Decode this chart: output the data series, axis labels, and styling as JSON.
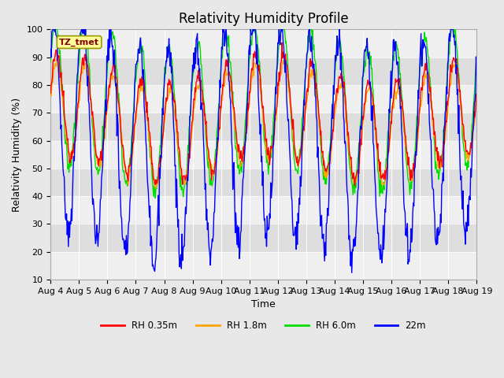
{
  "title": "Relativity Humidity Profile",
  "xlabel": "Time",
  "ylabel": "Relativity Humidity (%)",
  "ylim": [
    10,
    100
  ],
  "n_days": 15,
  "xtick_labels": [
    "Aug 4",
    "Aug 5",
    "Aug 6",
    "Aug 7",
    "Aug 8",
    "Aug 9",
    "Aug 10",
    "Aug 11",
    "Aug 12",
    "Aug 13",
    "Aug 14",
    "Aug 15",
    "Aug 16",
    "Aug 17",
    "Aug 18",
    "Aug 19"
  ],
  "annotation_text": "TZ_tmet",
  "legend_labels": [
    "RH 0.35m",
    "RH 1.8m",
    "RH 6.0m",
    "22m"
  ],
  "colors": {
    "red": "#ff0000",
    "orange": "#ffa500",
    "green": "#00dd00",
    "blue": "#0000ff"
  },
  "plot_bg": "#e8e8e8",
  "band_light": "#efefef",
  "band_dark": "#dedede",
  "title_fontsize": 12,
  "axis_label_fontsize": 9,
  "tick_fontsize": 8
}
